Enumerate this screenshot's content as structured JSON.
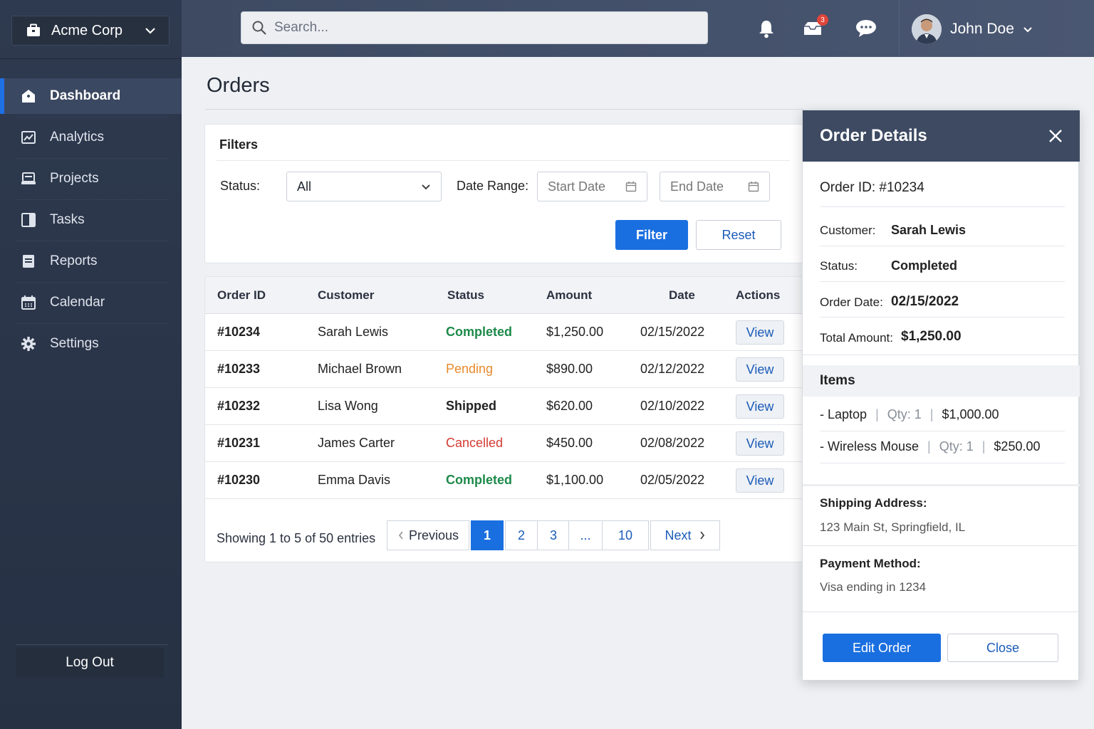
{
  "company": {
    "name": "Acme Corp"
  },
  "sidebar": {
    "items": [
      {
        "label": "Dashboard",
        "icon": "dashboard-icon"
      },
      {
        "label": "Analytics",
        "icon": "analytics-icon"
      },
      {
        "label": "Projects",
        "icon": "projects-icon"
      },
      {
        "label": "Tasks",
        "icon": "tasks-icon"
      },
      {
        "label": "Reports",
        "icon": "reports-icon"
      },
      {
        "label": "Calendar",
        "icon": "calendar-icon"
      },
      {
        "label": "Settings",
        "icon": "gear-icon"
      }
    ],
    "active": "Dashboard",
    "logout_label": "Log Out"
  },
  "topbar": {
    "search_placeholder": "Search...",
    "messages_badge": "3",
    "user_name": "John Doe"
  },
  "page": {
    "title": "Orders"
  },
  "filters": {
    "heading": "Filters",
    "status_label": "Status:",
    "status_value": "All",
    "date_range_label": "Date Range:",
    "start_date_placeholder": "Start Date",
    "end_date_placeholder": "End Date",
    "filter_button": "Filter",
    "reset_button": "Reset"
  },
  "table": {
    "headers": [
      "Order ID",
      "Customer",
      "Status",
      "Amount",
      "Date",
      "Actions"
    ],
    "rows": [
      {
        "id": "#10234",
        "customer": "Sarah Lewis",
        "status": "Completed",
        "amount": "$1,250.00",
        "date": "02/15/2022",
        "action": "View"
      },
      {
        "id": "#10233",
        "customer": "Michael Brown",
        "status": "Pending",
        "amount": "$890.00",
        "date": "02/12/2022",
        "action": "View"
      },
      {
        "id": "#10232",
        "customer": "Lisa Wong",
        "status": "Shipped",
        "amount": "$620.00",
        "date": "02/10/2022",
        "action": "View"
      },
      {
        "id": "#10231",
        "customer": "James Carter",
        "status": "Cancelled",
        "amount": "$450.00",
        "date": "02/08/2022",
        "action": "View"
      },
      {
        "id": "#10230",
        "customer": "Emma Davis",
        "status": "Completed",
        "amount": "$1,100.00",
        "date": "02/05/2022",
        "action": "View"
      }
    ],
    "showing": "Showing 1 to 5 of 50 entries",
    "pagination": {
      "previous": "Previous",
      "pages": [
        "1",
        "2",
        "3",
        "...",
        "10"
      ],
      "current": "1",
      "next": "Next"
    }
  },
  "status_colors": {
    "Completed": "#1d8a4a",
    "Pending": "#e88a2c",
    "Shipped": "#222222",
    "Cancelled": "#d23b32"
  },
  "order_details": {
    "title": "Order Details",
    "order_id": "Order ID: #10234",
    "customer_label": "Customer:",
    "customer": "Sarah Lewis",
    "status_label": "Status:",
    "status": "Completed",
    "order_date_label": "Order Date:",
    "order_date": "02/15/2022",
    "total_label": "Total Amount:",
    "total": "$1,250.00",
    "items_heading": "Items",
    "items": [
      {
        "name": "- Laptop",
        "qty": "Qty: 1",
        "price": "$1,000.00"
      },
      {
        "name": "- Wireless Mouse",
        "qty": "Qty: 1",
        "price": "$250.00"
      }
    ],
    "shipping_label": "Shipping Address:",
    "shipping": "123 Main St, Springfield, IL",
    "payment_label": "Payment Method:",
    "payment": "Visa ending in 1234",
    "edit_button": "Edit Order",
    "close_button": "Close"
  }
}
